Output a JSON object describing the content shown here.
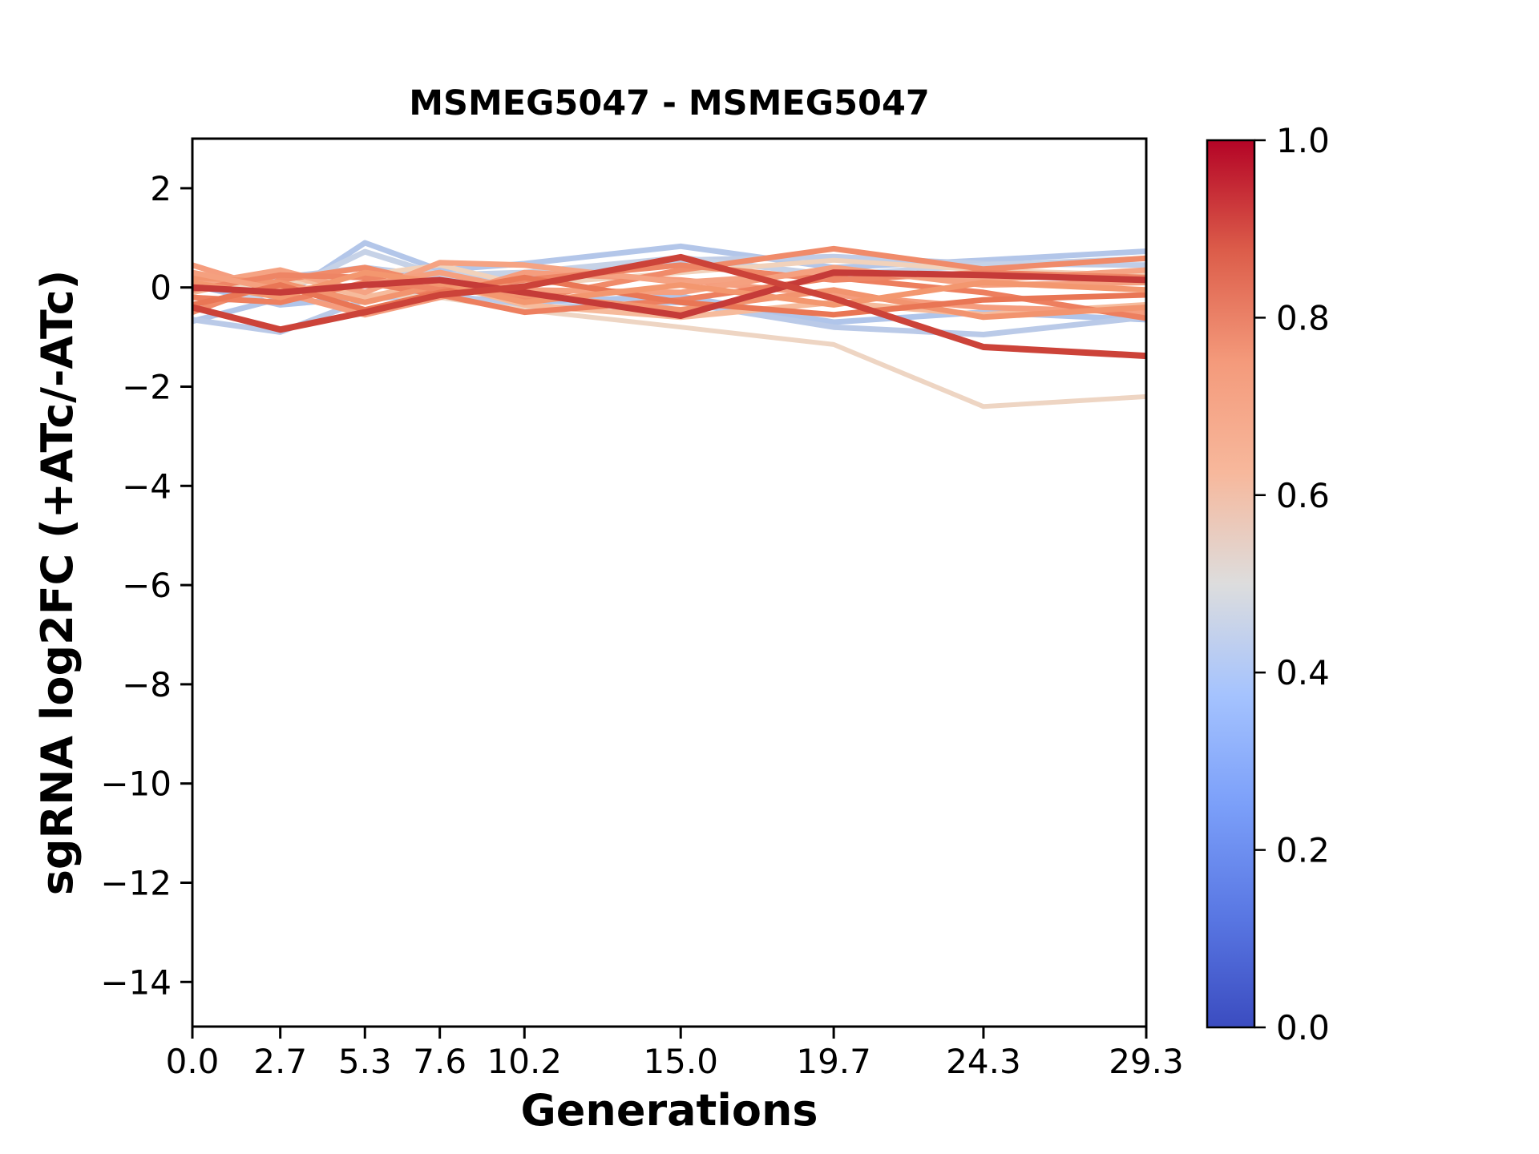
{
  "chart_data": {
    "type": "line",
    "title": "MSMEG5047 - MSMEG5047",
    "xlabel": "Generations",
    "ylabel": "sgRNA log2FC (+ATc/-ATc)",
    "xlim": [
      0,
      29.3
    ],
    "ylim": [
      -14.9,
      3.0
    ],
    "grid": false,
    "legend": "none",
    "x": [
      0.0,
      2.7,
      5.3,
      7.6,
      10.2,
      15.0,
      19.7,
      24.3,
      29.3
    ],
    "xtick_labels": [
      "0.0",
      "2.7",
      "5.3",
      "7.6",
      "10.2",
      "15.0",
      "19.7",
      "24.3",
      "29.3"
    ],
    "ytick_values": [
      2,
      0,
      -2,
      -4,
      -6,
      -8,
      -10,
      -12,
      -14
    ],
    "ytick_labels": [
      "2",
      "0",
      "−2",
      "−4",
      "−6",
      "−8",
      "−10",
      "−12",
      "−14"
    ],
    "series": [
      {
        "name": "line-01",
        "cmap_value": 0.42,
        "color": "#b3c6e9",
        "width": 7,
        "y": [
          -0.68,
          -0.22,
          0.9,
          0.35,
          0.48,
          0.83,
          0.4,
          0.55,
          0.73
        ]
      },
      {
        "name": "line-02",
        "cmap_value": 0.44,
        "color": "#c0cde7",
        "width": 7,
        "y": [
          0.15,
          0.2,
          0.4,
          0.22,
          0.18,
          0.55,
          0.62,
          0.48,
          0.45
        ]
      },
      {
        "name": "line-03",
        "cmap_value": 0.4,
        "color": "#b0c5ea",
        "width": 7,
        "y": [
          0.05,
          -0.35,
          -0.2,
          -0.18,
          -0.3,
          -0.18,
          -0.7,
          -0.5,
          -0.65
        ]
      },
      {
        "name": "line-04",
        "cmap_value": 0.43,
        "color": "#bacae8",
        "width": 7,
        "y": [
          -0.65,
          -0.9,
          -0.25,
          -0.1,
          -0.42,
          -0.3,
          -0.8,
          -0.95,
          -0.6
        ]
      },
      {
        "name": "line-05",
        "cmap_value": 0.45,
        "color": "#c6d2e7",
        "width": 7,
        "y": [
          -0.35,
          -0.1,
          0.72,
          0.25,
          0.3,
          0.6,
          0.25,
          0.45,
          0.58
        ]
      },
      {
        "name": "line-06",
        "cmap_value": 0.6,
        "color": "#eed5c3",
        "width": 6,
        "y": [
          0.1,
          -0.05,
          -0.15,
          -0.2,
          -0.45,
          -0.8,
          -1.15,
          -2.4,
          -2.2
        ]
      },
      {
        "name": "line-07",
        "cmap_value": 0.62,
        "color": "#f1d2bb",
        "width": 6,
        "y": [
          0.3,
          0.05,
          0.25,
          0.45,
          0.05,
          0.3,
          0.55,
          0.35,
          0.25
        ]
      },
      {
        "name": "line-08",
        "cmap_value": 0.67,
        "color": "#f6bb9c",
        "width": 7,
        "y": [
          -0.1,
          0.3,
          -0.2,
          0.1,
          -0.35,
          -0.6,
          -0.3,
          -0.55,
          -0.35
        ]
      },
      {
        "name": "line-09",
        "cmap_value": 0.74,
        "color": "#f59d7e",
        "width": 7,
        "y": [
          0.45,
          -0.1,
          -0.55,
          -0.2,
          0.3,
          0.15,
          -0.15,
          -0.4,
          -0.5
        ]
      },
      {
        "name": "line-10",
        "cmap_value": 0.78,
        "color": "#f08b6a",
        "width": 7,
        "y": [
          -0.5,
          0.15,
          0.4,
          0.05,
          -0.25,
          0.35,
          0.78,
          0.37,
          0.59
        ]
      },
      {
        "name": "line-11",
        "cmap_value": 0.72,
        "color": "#f5a383",
        "width": 7,
        "y": [
          0.05,
          0.35,
          -0.1,
          0.5,
          0.45,
          0.1,
          0.3,
          0.15,
          0.35
        ]
      },
      {
        "name": "line-12",
        "cmap_value": 0.8,
        "color": "#ed7f5f",
        "width": 7,
        "y": [
          -0.2,
          -0.3,
          0.1,
          -0.15,
          -0.5,
          -0.25,
          0.2,
          -0.1,
          -0.62
        ]
      },
      {
        "name": "line-13",
        "cmap_value": 0.76,
        "color": "#f2946f",
        "width": 7,
        "y": [
          0.2,
          0.1,
          -0.3,
          0.05,
          -0.15,
          -0.45,
          -0.05,
          -0.6,
          -0.4
        ]
      },
      {
        "name": "line-14",
        "cmap_value": 0.79,
        "color": "#ee8565",
        "width": 7,
        "y": [
          -0.05,
          0.25,
          0.2,
          -0.05,
          0.15,
          0.45,
          0.15,
          0.3,
          0.2
        ]
      },
      {
        "name": "line-15",
        "cmap_value": 0.73,
        "color": "#f5a07f",
        "width": 7,
        "y": [
          0.3,
          -0.05,
          0.05,
          0.3,
          -0.05,
          -0.1,
          0.4,
          0.05,
          0.1
        ]
      },
      {
        "name": "line-16",
        "cmap_value": 0.82,
        "color": "#e97655",
        "width": 7,
        "y": [
          -0.35,
          0.05,
          -0.45,
          -0.1,
          0.2,
          -0.3,
          -0.55,
          -0.25,
          -0.15
        ]
      },
      {
        "name": "line-17",
        "cmap_value": 0.75,
        "color": "#f3976f",
        "width": 7,
        "y": [
          0.1,
          -0.2,
          0.3,
          0.1,
          -0.3,
          0.05,
          -0.35,
          0.1,
          -0.05
        ]
      },
      {
        "name": "line-18",
        "cmap_value": 0.95,
        "color": "#c53b38",
        "width": 8,
        "y": [
          0.0,
          -0.1,
          0.05,
          0.15,
          -0.1,
          -0.57,
          0.3,
          0.25,
          0.15
        ]
      },
      {
        "name": "line-19",
        "cmap_value": 0.92,
        "color": "#cc4339",
        "width": 8,
        "y": [
          -0.4,
          -0.85,
          -0.5,
          -0.15,
          0.02,
          0.61,
          -0.22,
          -1.2,
          -1.38
        ]
      }
    ],
    "colorbar": {
      "min": 0.0,
      "max": 1.0,
      "tick_labels": [
        "1.0",
        "0.8",
        "0.6",
        "0.4",
        "0.2",
        "0.0"
      ],
      "tick_values": [
        1.0,
        0.8,
        0.6,
        0.4,
        0.2,
        0.0
      ],
      "gradient": [
        {
          "offset": 0.0,
          "color": "#b40426"
        },
        {
          "offset": 0.125,
          "color": "#dc5d4a"
        },
        {
          "offset": 0.25,
          "color": "#f49a7b"
        },
        {
          "offset": 0.375,
          "color": "#f7b89c"
        },
        {
          "offset": 0.5,
          "color": "#dddddd"
        },
        {
          "offset": 0.625,
          "color": "#a5c3fe"
        },
        {
          "offset": 0.75,
          "color": "#7b9ff9"
        },
        {
          "offset": 0.875,
          "color": "#5977e3"
        },
        {
          "offset": 1.0,
          "color": "#3b4cc0"
        }
      ]
    }
  }
}
